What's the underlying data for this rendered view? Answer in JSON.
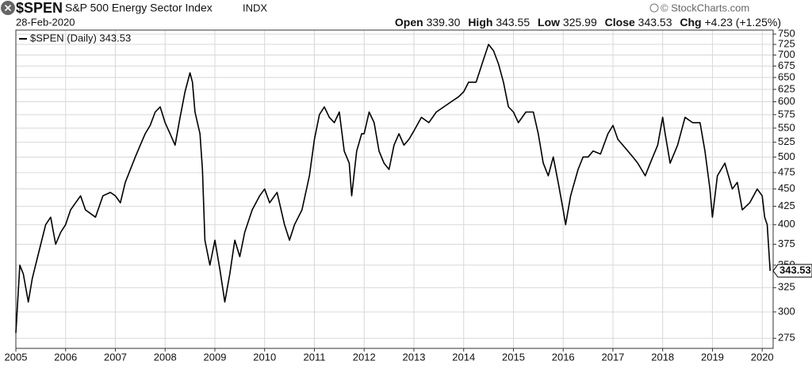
{
  "header": {
    "symbol": "$SPEN",
    "name": "S&P 500 Energy Sector Index",
    "exchange": "INDX",
    "date": "28-Feb-2020",
    "open_label": "Open",
    "open": "339.30",
    "high_label": "High",
    "high": "343.55",
    "low_label": "Low",
    "low": "325.99",
    "close_label": "Close",
    "close": "343.53",
    "chg_label": "Chg",
    "chg": "+4.23 (+1.25%)",
    "source": "© StockCharts.com"
  },
  "chart_data": {
    "type": "line",
    "log_scale": true,
    "grid": true,
    "last_label": "343.53",
    "xlim": [
      2005,
      2020.22
    ],
    "xticks": [
      2005,
      2006,
      2007,
      2008,
      2009,
      2010,
      2011,
      2012,
      2013,
      2014,
      2015,
      2016,
      2017,
      2018,
      2019,
      2020
    ],
    "ylim": [
      266,
      760
    ],
    "yticks": [
      275,
      300,
      325,
      350,
      375,
      400,
      425,
      450,
      475,
      500,
      525,
      550,
      575,
      600,
      625,
      650,
      675,
      700,
      725,
      750
    ],
    "x": [
      2005.0,
      2005.08,
      2005.15,
      2005.25,
      2005.33,
      2005.5,
      2005.6,
      2005.7,
      2005.8,
      2005.9,
      2006.0,
      2006.1,
      2006.3,
      2006.4,
      2006.5,
      2006.6,
      2006.75,
      2006.9,
      2007.0,
      2007.1,
      2007.2,
      2007.4,
      2007.5,
      2007.6,
      2007.7,
      2007.8,
      2007.9,
      2008.0,
      2008.1,
      2008.2,
      2008.3,
      2008.4,
      2008.5,
      2008.55,
      2008.6,
      2008.7,
      2008.75,
      2008.8,
      2008.9,
      2009.0,
      2009.1,
      2009.2,
      2009.3,
      2009.4,
      2009.5,
      2009.6,
      2009.75,
      2009.9,
      2010.0,
      2010.1,
      2010.25,
      2010.4,
      2010.5,
      2010.6,
      2010.75,
      2010.9,
      2011.0,
      2011.1,
      2011.2,
      2011.3,
      2011.4,
      2011.5,
      2011.6,
      2011.7,
      2011.75,
      2011.85,
      2011.95,
      2012.0,
      2012.1,
      2012.2,
      2012.3,
      2012.4,
      2012.5,
      2012.6,
      2012.7,
      2012.8,
      2012.9,
      2013.0,
      2013.15,
      2013.3,
      2013.45,
      2013.6,
      2013.75,
      2013.9,
      2014.0,
      2014.1,
      2014.25,
      2014.4,
      2014.5,
      2014.6,
      2014.7,
      2014.8,
      2014.9,
      2015.0,
      2015.1,
      2015.25,
      2015.4,
      2015.5,
      2015.6,
      2015.7,
      2015.8,
      2015.9,
      2016.0,
      2016.05,
      2016.15,
      2016.3,
      2016.4,
      2016.5,
      2016.6,
      2016.75,
      2016.9,
      2017.0,
      2017.1,
      2017.25,
      2017.4,
      2017.5,
      2017.65,
      2017.75,
      2017.9,
      2018.0,
      2018.05,
      2018.15,
      2018.3,
      2018.45,
      2018.6,
      2018.75,
      2018.85,
      2018.95,
      2019.0,
      2019.1,
      2019.25,
      2019.4,
      2019.5,
      2019.6,
      2019.75,
      2019.9,
      2020.0,
      2020.05,
      2020.1,
      2020.13,
      2020.16
    ],
    "series": [
      {
        "name": "$SPEN (Daily) 343.53",
        "color": "#000000",
        "values": [
          280,
          350,
          340,
          310,
          335,
          375,
          400,
          410,
          375,
          390,
          400,
          420,
          440,
          420,
          415,
          410,
          440,
          445,
          440,
          430,
          460,
          500,
          520,
          540,
          555,
          580,
          590,
          560,
          540,
          520,
          570,
          620,
          660,
          640,
          580,
          540,
          480,
          380,
          350,
          380,
          345,
          310,
          340,
          380,
          360,
          390,
          420,
          440,
          450,
          430,
          445,
          400,
          380,
          400,
          420,
          470,
          530,
          575,
          590,
          570,
          560,
          580,
          510,
          490,
          440,
          510,
          540,
          540,
          580,
          560,
          510,
          490,
          480,
          520,
          540,
          520,
          530,
          545,
          570,
          560,
          580,
          590,
          600,
          610,
          620,
          640,
          640,
          690,
          725,
          710,
          680,
          640,
          590,
          580,
          560,
          580,
          580,
          540,
          490,
          470,
          500,
          460,
          420,
          400,
          440,
          480,
          500,
          500,
          510,
          505,
          540,
          555,
          530,
          515,
          500,
          490,
          470,
          490,
          520,
          570,
          540,
          490,
          520,
          570,
          560,
          560,
          510,
          450,
          410,
          470,
          490,
          450,
          460,
          420,
          430,
          450,
          440,
          410,
          400,
          370,
          343.53
        ]
      }
    ]
  }
}
